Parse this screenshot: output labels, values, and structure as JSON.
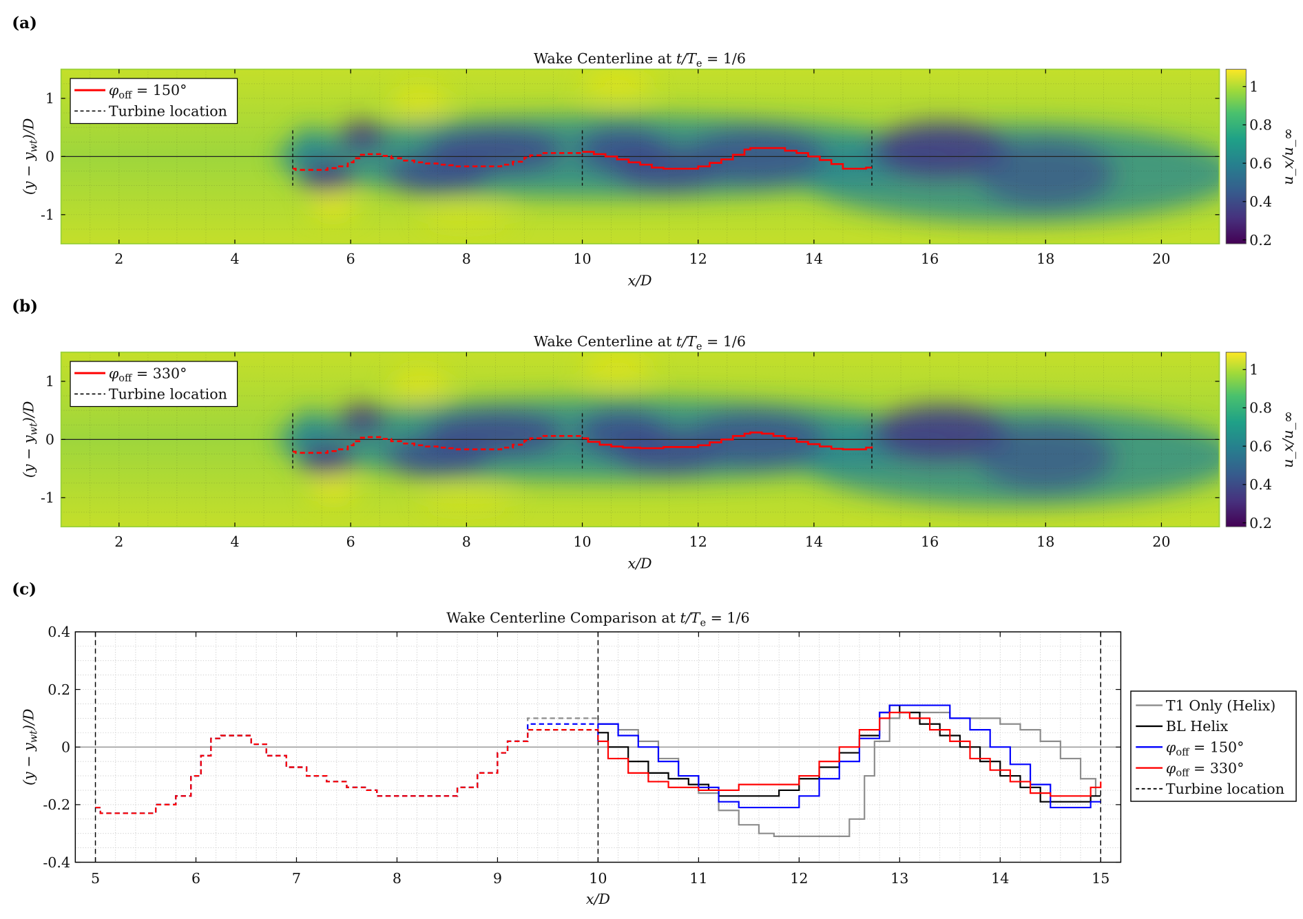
{
  "panels": {
    "a": {
      "label": "(a)",
      "title": {
        "pre": "Wake Centerline at ",
        "t": "t/T",
        "sub": "e",
        "post": " = 1/6"
      },
      "legend": {
        "sym": "φ",
        "sub": "off",
        "tail": " = 150°",
        "turbine": "Turbine location"
      }
    },
    "b": {
      "label": "(b)",
      "title": {
        "pre": "Wake Centerline at ",
        "t": "t/T",
        "sub": "e",
        "post": " = 1/6"
      },
      "legend": {
        "sym": "φ",
        "sub": "off",
        "tail": " = 330°",
        "turbine": "Turbine location"
      }
    },
    "c": {
      "label": "(c)",
      "title": {
        "pre": "Wake Centerline Comparison at ",
        "t": "t/T",
        "sub": "e",
        "post": " = 1/6"
      }
    }
  },
  "axes": {
    "xlabel": "x/D",
    "ylabel": {
      "main": "(y − y",
      "sub": "wt",
      "tail": ")/D"
    },
    "colorbar_label": "u_x/u_∞",
    "map_xticks": [
      "2",
      "4",
      "6",
      "8",
      "10",
      "12",
      "14",
      "16",
      "18",
      "20"
    ],
    "map_yticks": [
      "1",
      "0",
      "-1"
    ],
    "colorbar_ticks": [
      "1",
      "0.8",
      "0.6",
      "0.4",
      "0.2"
    ],
    "c_xticks": [
      "5",
      "6",
      "7",
      "8",
      "9",
      "10",
      "11",
      "12",
      "13",
      "14",
      "15"
    ],
    "c_yticks": [
      "0.4",
      "0.2",
      "0",
      "-0.2",
      "-0.4"
    ]
  },
  "legend_c": [
    {
      "name": "T1 Only (Helix)",
      "color": "#8c8c8c"
    },
    {
      "name": "BL Helix",
      "color": "#000000"
    },
    {
      "sym": "φ",
      "sub": "off",
      "tail": " = 150°",
      "color": "#0000ff"
    },
    {
      "sym": "φ",
      "sub": "off",
      "tail": " = 330°",
      "color": "#ff0000"
    },
    {
      "name": "Turbine location",
      "color": "#000000"
    }
  ],
  "chart_data": [
    {
      "type": "heatmap",
      "panel": "a",
      "title": "Wake Centerline at t/Te = 1/6",
      "xlabel": "x/D",
      "ylabel": "(y - y_wt)/D",
      "xlim": [
        1,
        21
      ],
      "ylim": [
        -1.5,
        1.5
      ],
      "clim": [
        0.18,
        1.09
      ],
      "colormap": "viridis",
      "turbine_locations": [
        5,
        10,
        15
      ],
      "centerline_series": "phi_off_150"
    },
    {
      "type": "heatmap",
      "panel": "b",
      "title": "Wake Centerline at t/Te = 1/6",
      "xlabel": "x/D",
      "ylabel": "(y - y_wt)/D",
      "xlim": [
        1,
        21
      ],
      "ylim": [
        -1.5,
        1.5
      ],
      "clim": [
        0.18,
        1.09
      ],
      "colormap": "viridis",
      "turbine_locations": [
        5,
        10,
        15
      ],
      "centerline_series": "phi_off_330"
    },
    {
      "type": "line",
      "panel": "c",
      "title": "Wake Centerline Comparison at t/Te = 1/6",
      "xlabel": "x/D",
      "ylabel": "(y - y_wt)/D",
      "xlim": [
        4.8,
        15.2
      ],
      "ylim": [
        -0.4,
        0.4
      ],
      "grid": true,
      "legend": "right",
      "turbine_locations": [
        5,
        10,
        15
      ],
      "common_upstream": [
        [
          5,
          -0.21
        ],
        [
          5.05,
          -0.23
        ],
        [
          5.45,
          -0.23
        ],
        [
          5.6,
          -0.2
        ],
        [
          5.8,
          -0.17
        ],
        [
          5.95,
          -0.1
        ],
        [
          6.05,
          -0.03
        ],
        [
          6.15,
          0.03
        ],
        [
          6.25,
          0.04
        ],
        [
          6.4,
          0.04
        ],
        [
          6.55,
          0.01
        ],
        [
          6.7,
          -0.03
        ],
        [
          6.9,
          -0.07
        ],
        [
          7.1,
          -0.1
        ],
        [
          7.3,
          -0.12
        ],
        [
          7.5,
          -0.14
        ],
        [
          7.7,
          -0.15
        ],
        [
          7.8,
          -0.17
        ],
        [
          8.4,
          -0.17
        ],
        [
          8.6,
          -0.14
        ],
        [
          8.8,
          -0.09
        ],
        [
          9.0,
          -0.02
        ],
        [
          9.1,
          0.02
        ],
        [
          9.3,
          0.06
        ],
        [
          9.8,
          0.06
        ],
        [
          10,
          0.02
        ]
      ],
      "series": [
        {
          "key": "t1_only",
          "name": "T1 Only (Helix)",
          "upstream_peak": 0.1,
          "points": [
            [
              10,
              0.08
            ],
            [
              10.2,
              0.06
            ],
            [
              10.4,
              0.02
            ],
            [
              10.6,
              -0.04
            ],
            [
              10.8,
              -0.1
            ],
            [
              11,
              -0.16
            ],
            [
              11.2,
              -0.22
            ],
            [
              11.4,
              -0.27
            ],
            [
              11.6,
              -0.3
            ],
            [
              11.75,
              -0.31
            ],
            [
              12.3,
              -0.31
            ],
            [
              12.5,
              -0.25
            ],
            [
              12.65,
              -0.1
            ],
            [
              12.75,
              0.02
            ],
            [
              12.9,
              0.1
            ],
            [
              13.0,
              0.12
            ],
            [
              13.2,
              0.12
            ],
            [
              13.5,
              0.1
            ],
            [
              13.8,
              0.1
            ],
            [
              14.0,
              0.08
            ],
            [
              14.2,
              0.06
            ],
            [
              14.4,
              0.02
            ],
            [
              14.6,
              -0.04
            ],
            [
              14.8,
              -0.11
            ],
            [
              14.95,
              -0.17
            ]
          ]
        },
        {
          "key": "bl_helix",
          "name": "BL Helix",
          "upstream_peak": 0.06,
          "points": [
            [
              10,
              0.05
            ],
            [
              10.1,
              0.0
            ],
            [
              10.3,
              -0.05
            ],
            [
              10.5,
              -0.09
            ],
            [
              10.7,
              -0.11
            ],
            [
              10.9,
              -0.13
            ],
            [
              11.1,
              -0.15
            ],
            [
              11.2,
              -0.17
            ],
            [
              11.6,
              -0.17
            ],
            [
              11.8,
              -0.15
            ],
            [
              12.0,
              -0.11
            ],
            [
              12.2,
              -0.07
            ],
            [
              12.4,
              -0.02
            ],
            [
              12.6,
              0.04
            ],
            [
              12.8,
              0.12
            ],
            [
              12.9,
              0.145
            ],
            [
              13.0,
              0.12
            ],
            [
              13.2,
              0.08
            ],
            [
              13.4,
              0.04
            ],
            [
              13.6,
              0.0
            ],
            [
              13.8,
              -0.05
            ],
            [
              14.0,
              -0.1
            ],
            [
              14.2,
              -0.14
            ],
            [
              14.4,
              -0.19
            ],
            [
              14.8,
              -0.19
            ],
            [
              14.9,
              -0.17
            ],
            [
              15,
              -0.17
            ]
          ]
        },
        {
          "key": "phi_off_150",
          "name": "φoff = 150°",
          "upstream_peak": 0.08,
          "points": [
            [
              10,
              0.08
            ],
            [
              10.2,
              0.04
            ],
            [
              10.4,
              0.0
            ],
            [
              10.6,
              -0.05
            ],
            [
              10.8,
              -0.1
            ],
            [
              11.0,
              -0.14
            ],
            [
              11.2,
              -0.19
            ],
            [
              11.4,
              -0.21
            ],
            [
              11.8,
              -0.21
            ],
            [
              12.0,
              -0.17
            ],
            [
              12.2,
              -0.11
            ],
            [
              12.4,
              -0.05
            ],
            [
              12.6,
              0.03
            ],
            [
              12.8,
              0.12
            ],
            [
              12.9,
              0.145
            ],
            [
              13.3,
              0.145
            ],
            [
              13.5,
              0.1
            ],
            [
              13.7,
              0.06
            ],
            [
              13.9,
              0.0
            ],
            [
              14.1,
              -0.06
            ],
            [
              14.3,
              -0.13
            ],
            [
              14.5,
              -0.21
            ],
            [
              14.8,
              -0.21
            ],
            [
              14.9,
              -0.19
            ],
            [
              15,
              -0.19
            ]
          ]
        },
        {
          "key": "phi_off_330",
          "name": "φoff = 330°",
          "upstream_peak": 0.06,
          "points": [
            [
              10,
              0.02
            ],
            [
              10.1,
              -0.04
            ],
            [
              10.3,
              -0.09
            ],
            [
              10.5,
              -0.12
            ],
            [
              10.7,
              -0.14
            ],
            [
              11.0,
              -0.15
            ],
            [
              11.3,
              -0.15
            ],
            [
              11.4,
              -0.13
            ],
            [
              11.8,
              -0.13
            ],
            [
              12.0,
              -0.1
            ],
            [
              12.2,
              -0.05
            ],
            [
              12.4,
              0.0
            ],
            [
              12.6,
              0.06
            ],
            [
              12.8,
              0.1
            ],
            [
              12.9,
              0.12
            ],
            [
              13.0,
              0.12
            ],
            [
              13.1,
              0.1
            ],
            [
              13.3,
              0.06
            ],
            [
              13.5,
              0.02
            ],
            [
              13.7,
              -0.04
            ],
            [
              13.9,
              -0.08
            ],
            [
              14.1,
              -0.12
            ],
            [
              14.3,
              -0.16
            ],
            [
              14.5,
              -0.17
            ],
            [
              14.8,
              -0.17
            ],
            [
              14.9,
              -0.14
            ],
            [
              15,
              -0.12
            ]
          ]
        }
      ]
    }
  ]
}
